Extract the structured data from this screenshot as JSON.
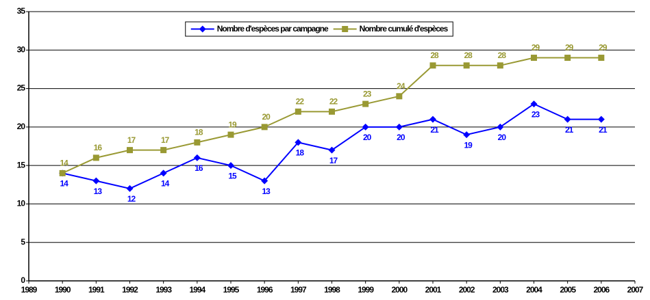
{
  "chart_data": {
    "type": "line",
    "x": [
      1990,
      1991,
      1992,
      1993,
      1994,
      1995,
      1996,
      1997,
      1998,
      1999,
      2000,
      2001,
      2002,
      2003,
      2004,
      2005,
      2006
    ],
    "series": [
      {
        "name": "Nombre d'espèces par campagne",
        "color": "#0000ff",
        "marker": "diamond",
        "values": [
          14,
          13,
          12,
          14,
          16,
          15,
          13,
          18,
          17,
          20,
          20,
          21,
          19,
          20,
          23,
          21,
          21
        ]
      },
      {
        "name": "Nombre cumulé d'espèces",
        "color": "#999933",
        "marker": "square",
        "values": [
          14,
          16,
          17,
          17,
          18,
          19,
          20,
          22,
          22,
          23,
          24,
          28,
          28,
          28,
          29,
          29,
          29
        ]
      }
    ],
    "xlim": [
      1989,
      2007
    ],
    "xticks": [
      1989,
      1990,
      1991,
      1992,
      1993,
      1994,
      1995,
      1996,
      1997,
      1998,
      1999,
      2000,
      2001,
      2002,
      2003,
      2004,
      2005,
      2006,
      2007
    ],
    "ylim": [
      0,
      35
    ],
    "yticks": [
      0,
      5,
      10,
      15,
      20,
      25,
      30,
      35
    ],
    "grid": true,
    "legend": "top",
    "data_labels": true
  }
}
